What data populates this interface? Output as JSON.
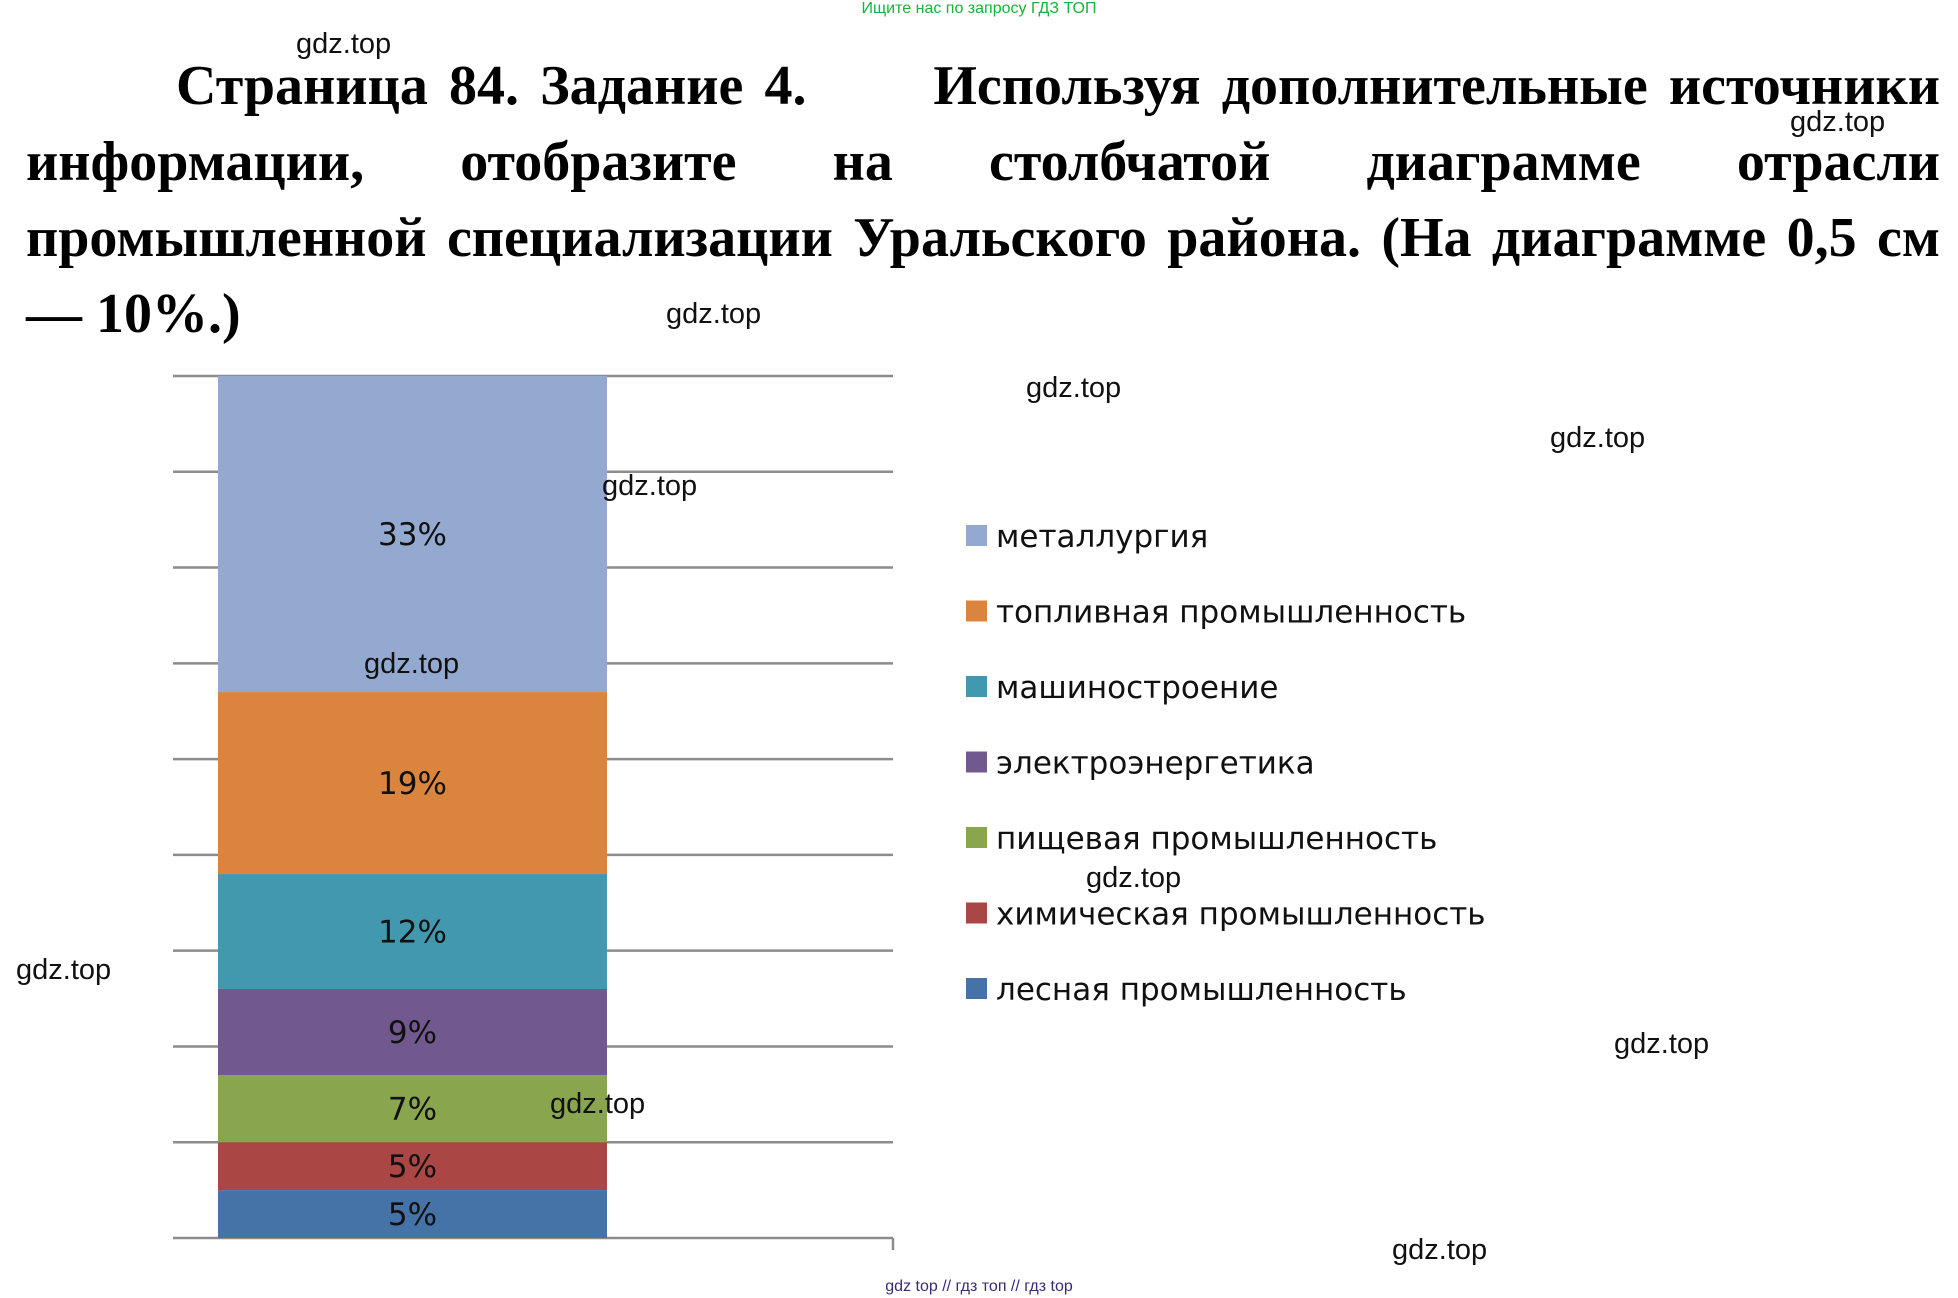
{
  "banner": "Ищите нас по запросу ГДЗ ТОП",
  "task_text": "Страница 84. Задание 4.      Используя дополнительные источники информации, отобразите на столбчатой диаграмме отрасли промышленной специализации Уральского района. (На диаграмме 0,5 см — 10%.)",
  "watermark": "gdz.top",
  "footer_links": "gdz top  //  гдз топ  //  гдз top",
  "chart_data": {
    "type": "bar",
    "stacked": true,
    "categories": [
      ""
    ],
    "series": [
      {
        "name": "лесная промышленность",
        "value": 5,
        "label": "5%",
        "color": "#4572a7"
      },
      {
        "name": "химическая промышленность",
        "value": 5,
        "label": "5%",
        "color": "#aa4643"
      },
      {
        "name": "пищевая промышленность",
        "value": 7,
        "label": "7%",
        "color": "#89a54e"
      },
      {
        "name": "электроэнергетика",
        "value": 9,
        "label": "9%",
        "color": "#71588f"
      },
      {
        "name": "машиностроение",
        "value": 12,
        "label": "12%",
        "color": "#4198af"
      },
      {
        "name": "топливная промышленность",
        "value": 19,
        "label": "19%",
        "color": "#db843d"
      },
      {
        "name": "металлургия",
        "value": 33,
        "label": "33%",
        "color": "#93a9cf"
      }
    ],
    "legend_order": [
      "металлургия",
      "топливная промышленность",
      "машиностроение",
      "электроэнергетика",
      "пищевая промышленность",
      "химическая промышленность",
      "лесная промышленность"
    ],
    "ylim": [
      0,
      90
    ],
    "gridlines": 9,
    "grid": true,
    "axis_labels_shown": false,
    "legend_position": "right"
  }
}
